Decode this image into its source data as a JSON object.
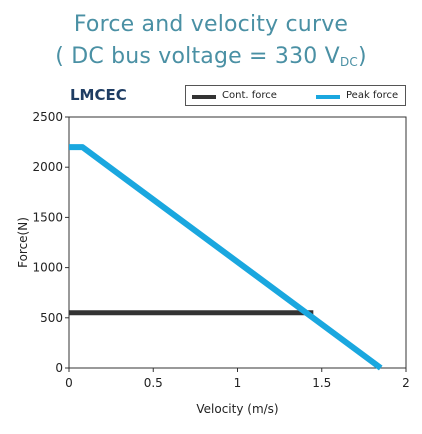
{
  "title_line1": "Force and velocity curve",
  "title_line2_main": "( DC bus voltage = 330 V",
  "title_line2_sub": "DC",
  "title_line2_end": ")",
  "model_label": "LMCEC",
  "colors": {
    "cont": "#333333",
    "peak": "#1aa7df",
    "title": "#4a90a4",
    "model": "#1f3d63"
  },
  "chart_data": {
    "type": "line",
    "xlabel": "Velocity (m/s)",
    "ylabel": "Force(N)",
    "xlim": [
      0,
      2
    ],
    "ylim": [
      0,
      2500
    ],
    "xticks": [
      "0",
      "0.5",
      "1",
      "1.5",
      "2"
    ],
    "yticks": [
      "0",
      "500",
      "1000",
      "1500",
      "2000",
      "2500"
    ],
    "grid": false,
    "legend_position": "top-right",
    "series": [
      {
        "name": "Cont. force",
        "x": [
          0,
          1.45
        ],
        "y": [
          550,
          550
        ]
      },
      {
        "name": "Peak force",
        "x": [
          0,
          0.08,
          1.85
        ],
        "y": [
          2200,
          2200,
          0
        ]
      }
    ]
  }
}
